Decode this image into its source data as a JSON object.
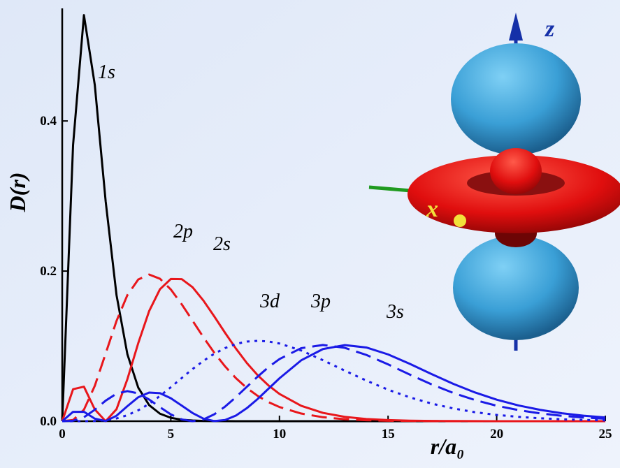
{
  "chart_data": {
    "type": "line",
    "x_label": "r/a₀",
    "y_label": "D(r)",
    "xlim": [
      0,
      25
    ],
    "ylim": [
      0,
      0.55
    ],
    "xticks": [
      0,
      5,
      10,
      15,
      20,
      25
    ],
    "yticks": [
      {
        "value": 0,
        "label": "0.0"
      },
      0.2,
      0.4
    ],
    "grid": false,
    "x": [
      0,
      0.5,
      1,
      1.5,
      2,
      2.5,
      3,
      3.5,
      4,
      4.5,
      5,
      5.5,
      6,
      6.5,
      7,
      7.5,
      8,
      8.5,
      9,
      9.5,
      10,
      11,
      12,
      13,
      14,
      15,
      16,
      17,
      18,
      19,
      20,
      21,
      22,
      23,
      24,
      25
    ],
    "series": [
      {
        "name": "1s",
        "color": "#000000",
        "dash": "solid",
        "values": [
          0,
          0.368,
          0.541,
          0.448,
          0.293,
          0.168,
          0.0892,
          0.0447,
          0.0215,
          0.01,
          0.0045,
          0.002,
          0.0009,
          0.0004,
          0.0002,
          0.0001,
          0,
          0,
          0,
          0,
          0,
          0,
          0,
          0,
          0,
          0,
          0,
          0,
          0,
          0,
          0,
          0,
          0,
          0,
          0,
          0
        ]
      },
      {
        "name": "2p",
        "color": "#e8161b",
        "dash": "dashed",
        "values": [
          0,
          0.0016,
          0.0153,
          0.0471,
          0.0902,
          0.1336,
          0.168,
          0.1888,
          0.1954,
          0.1898,
          0.1755,
          0.1558,
          0.1339,
          0.1118,
          0.0912,
          0.0729,
          0.0572,
          0.0442,
          0.0337,
          0.0254,
          0.0189,
          0.0102,
          0.0053,
          0.0027,
          0.0013,
          0.0006,
          0.0003,
          0.0001,
          0,
          0,
          0,
          0,
          0,
          0,
          0,
          0
        ]
      },
      {
        "name": "2s",
        "color": "#e8161b",
        "dash": "solid",
        "values": [
          0,
          0.0426,
          0.046,
          0.0157,
          0,
          0.016,
          0.056,
          0.104,
          0.1466,
          0.1758,
          0.1895,
          0.1893,
          0.1785,
          0.1607,
          0.1396,
          0.1176,
          0.0966,
          0.0775,
          0.0612,
          0.0475,
          0.0363,
          0.0205,
          0.0111,
          0.0058,
          0.0029,
          0.0015,
          0.0007,
          0.0003,
          0.0002,
          0.0001,
          0,
          0,
          0,
          0,
          0,
          0
        ]
      },
      {
        "name": "3d",
        "color": "#1a1ae6",
        "dash": "dotted",
        "values": [
          0,
          0,
          0,
          0.0003,
          0.0014,
          0.0037,
          0.008,
          0.0145,
          0.0231,
          0.0336,
          0.0453,
          0.0575,
          0.0695,
          0.0804,
          0.0899,
          0.0975,
          0.1029,
          0.1061,
          0.1071,
          0.1062,
          0.1035,
          0.0942,
          0.0813,
          0.0675,
          0.0541,
          0.042,
          0.0318,
          0.0235,
          0.017,
          0.012,
          0.0084,
          0.0058,
          0.0039,
          0.0026,
          0.0017,
          0.0011
        ]
      },
      {
        "name": "3p",
        "color": "#1a1ae6",
        "dash": "dashed",
        "values": [
          0,
          0.0006,
          0.0052,
          0.0153,
          0.0274,
          0.0367,
          0.0401,
          0.037,
          0.0289,
          0.0187,
          0.0091,
          0.0024,
          0,
          0.0024,
          0.0092,
          0.0195,
          0.0322,
          0.0459,
          0.0595,
          0.0721,
          0.0828,
          0.0973,
          0.1016,
          0.0978,
          0.0883,
          0.0757,
          0.0621,
          0.0491,
          0.0377,
          0.0282,
          0.0206,
          0.0148,
          0.0104,
          0.0072,
          0.0049,
          0.0033
        ]
      },
      {
        "name": "3s",
        "color": "#1a1ae6",
        "dash": "solid",
        "values": [
          0,
          0.0125,
          0.0126,
          0.0034,
          0.0002,
          0.0073,
          0.02,
          0.0319,
          0.0382,
          0.0373,
          0.0306,
          0.0208,
          0.0109,
          0.0034,
          0.0001,
          0.0016,
          0.0076,
          0.0174,
          0.0297,
          0.0434,
          0.0571,
          0.0811,
          0.0961,
          0.1014,
          0.0982,
          0.089,
          0.0764,
          0.0628,
          0.0498,
          0.0383,
          0.0287,
          0.021,
          0.0151,
          0.0106,
          0.0073,
          0.005
        ]
      }
    ],
    "inset_axis_labels": [
      "z",
      "x"
    ]
  }
}
